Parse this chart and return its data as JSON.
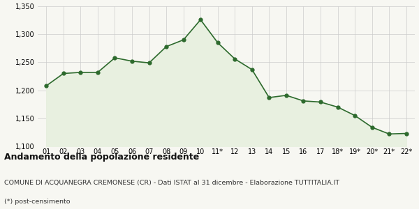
{
  "x_labels": [
    "01",
    "02",
    "03",
    "04",
    "05",
    "06",
    "07",
    "08",
    "09",
    "10",
    "11*",
    "12",
    "13",
    "14",
    "15",
    "16",
    "17",
    "18*",
    "19*",
    "20*",
    "21*",
    "22*"
  ],
  "y_values": [
    1208,
    1230,
    1232,
    1232,
    1258,
    1252,
    1249,
    1278,
    1290,
    1326,
    1285,
    1256,
    1237,
    1187,
    1191,
    1181,
    1179,
    1170,
    1155,
    1134,
    1122,
    1123
  ],
  "ylim": [
    1100,
    1350
  ],
  "yticks": [
    1100,
    1150,
    1200,
    1250,
    1300,
    1350
  ],
  "line_color": "#2d6a2d",
  "fill_color": "#e8f0e0",
  "marker_color": "#2d6a2d",
  "bg_color": "#f7f7f2",
  "grid_color": "#cccccc",
  "title": "Andamento della popolazione residente",
  "subtitle": "COMUNE DI ACQUANEGRA CREMONESE (CR) - Dati ISTAT al 31 dicembre - Elaborazione TUTTITALIA.IT",
  "footnote": "(*) post-censimento",
  "title_fontsize": 9,
  "subtitle_fontsize": 6.8,
  "footnote_fontsize": 6.8,
  "tick_fontsize": 7
}
